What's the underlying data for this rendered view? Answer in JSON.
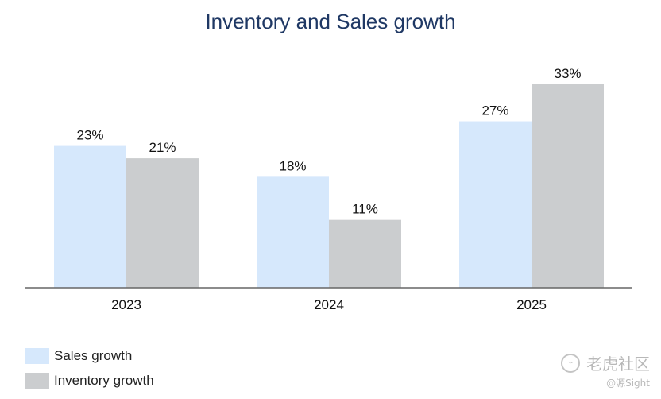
{
  "chart_data": {
    "type": "bar",
    "title": "Inventory and Sales growth",
    "categories": [
      "2023",
      "2024",
      "2025"
    ],
    "series": [
      {
        "name": "Sales growth",
        "values": [
          23,
          18,
          27
        ],
        "labels": [
          "23%",
          "18%",
          "27%"
        ],
        "color": "#d6e8fc"
      },
      {
        "name": "Inventory growth",
        "values": [
          21,
          11,
          33
        ],
        "labels": [
          "21%",
          "11%",
          "33%"
        ],
        "color": "#cbcdcf"
      }
    ],
    "ylim": [
      0,
      33
    ],
    "grid": false,
    "legend": "bottom-left",
    "xlabel": "",
    "ylabel": ""
  },
  "watermark": {
    "brand": "老虎社区",
    "handle": "@源Sight"
  },
  "colors": {
    "title": "#1f3864",
    "axis": "#666666"
  }
}
